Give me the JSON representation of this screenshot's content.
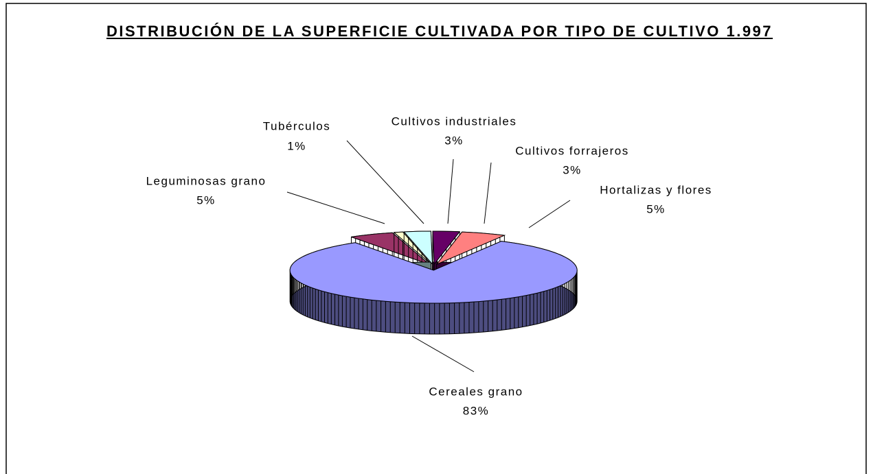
{
  "chart_data": {
    "type": "pie",
    "title": "DISTRIBUCIÓN DE LA SUPERFICIE CULTIVADA POR TIPO DE CULTIVO 1.997",
    "categories": [
      "Leguminosas grano",
      "Tubérculos",
      "Cultivos industriales",
      "Cultivos forrajeros",
      "Hortalizas y flores",
      "Cereales grano"
    ],
    "values": [
      5,
      1,
      3,
      3,
      5,
      83
    ],
    "value_labels": [
      "5%",
      "1%",
      "3%",
      "3%",
      "5%",
      "83%"
    ],
    "colors": [
      "#993366",
      "#ffffcc",
      "#ccffff",
      "#660066",
      "#ff8080",
      "#9999ff"
    ]
  }
}
